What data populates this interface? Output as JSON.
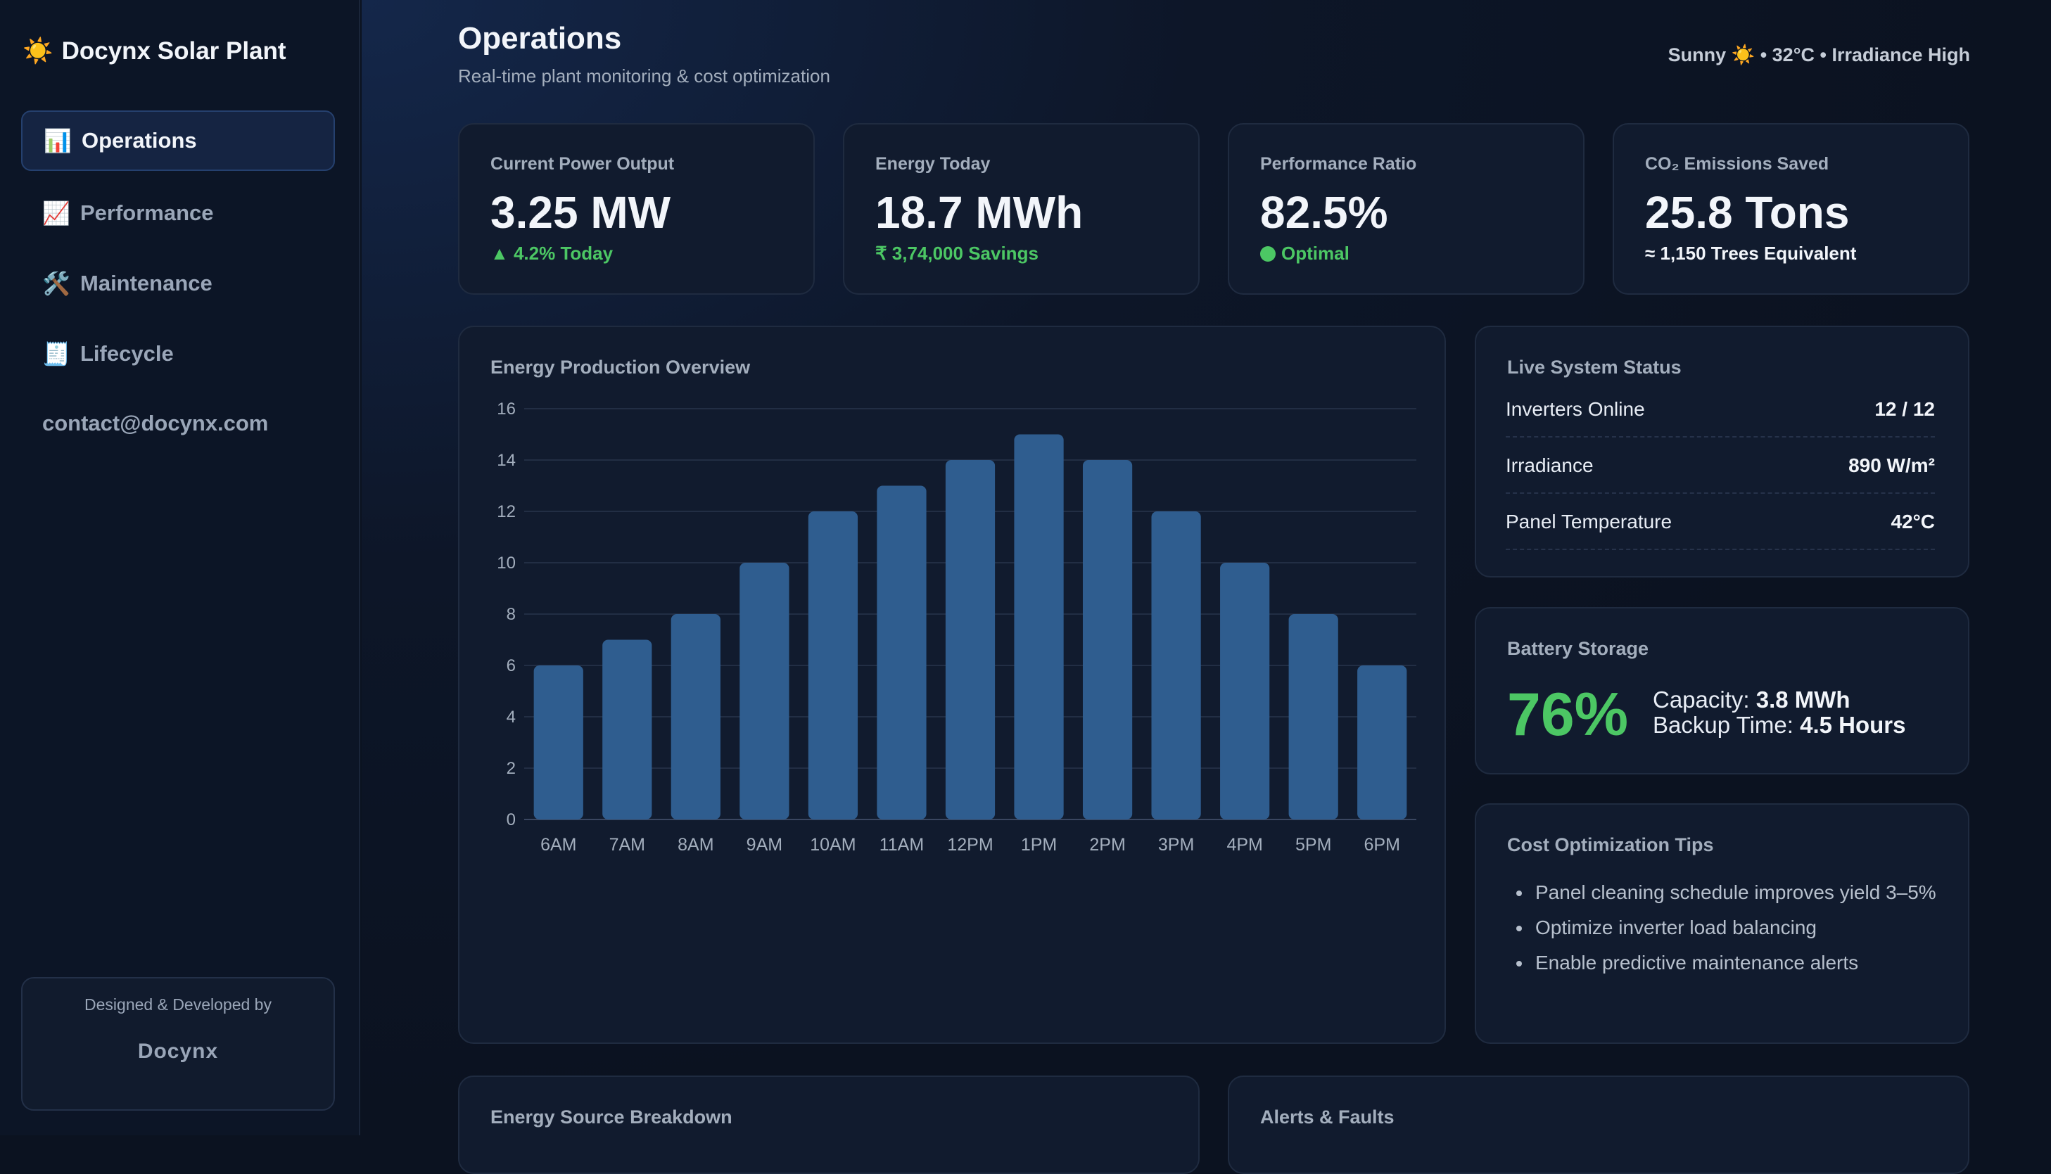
{
  "sidebar": {
    "brand_icon": "sun-icon",
    "brand_glyph": "☀️",
    "brand": "Docynx Solar Plant",
    "items": [
      {
        "label": "Operations",
        "icon": "bar-chart-icon",
        "glyph": "📊",
        "active": true
      },
      {
        "label": "Performance",
        "icon": "trend-chart-icon",
        "glyph": "📈",
        "active": false
      },
      {
        "label": "Maintenance",
        "icon": "tools-icon",
        "glyph": "🛠️",
        "active": false
      },
      {
        "label": "Lifecycle",
        "icon": "receipt-icon",
        "glyph": "🧾",
        "active": false
      }
    ],
    "contact": "contact@docynx.com",
    "credit_by": "Designed & Developed by",
    "credit_name": "Docynx"
  },
  "header": {
    "title": "Operations",
    "subtitle": "Real-time plant monitoring & cost optimization",
    "weather": "Sunny ☀️ • 32°C • Irradiance High"
  },
  "kpis": [
    {
      "label": "Current Power Output",
      "value": "3.25 MW",
      "sub": "▲ 4.2% Today",
      "sub_color": "#4cc764"
    },
    {
      "label": "Energy Today",
      "value": "18.7 MWh",
      "sub": "₹ 3,74,000 Savings",
      "sub_color": "#4cc764"
    },
    {
      "label": "Performance Ratio",
      "value": "82.5%",
      "sub": "Optimal",
      "sub_color": "#4cc764",
      "sub_dot": true
    },
    {
      "label": "CO₂ Emissions Saved",
      "value": "25.8 Tons",
      "sub": "≈ 1,150 Trees Equivalent",
      "sub_color": "#f2f5fa"
    }
  ],
  "energy_chart": {
    "title": "Energy Production Overview"
  },
  "chart_data": {
    "type": "bar",
    "categories": [
      "6AM",
      "7AM",
      "8AM",
      "9AM",
      "10AM",
      "11AM",
      "12PM",
      "1PM",
      "2PM",
      "3PM",
      "4PM",
      "5PM",
      "6PM"
    ],
    "values": [
      6,
      7,
      8,
      10,
      12,
      13,
      14,
      15,
      14,
      12,
      10,
      8,
      6
    ],
    "title": "Energy Production Overview",
    "xlabel": "",
    "ylabel": "",
    "ylim": [
      0,
      16
    ],
    "yticks": [
      0,
      2,
      4,
      6,
      8,
      10,
      12,
      14,
      16
    ],
    "grid": true,
    "bar_color": "#2f5d8f"
  },
  "live_status": {
    "title": "Live System Status",
    "rows": [
      {
        "label": "Inverters Online",
        "value": "12 / 12"
      },
      {
        "label": "Irradiance",
        "value": "890 W/m²"
      },
      {
        "label": "Panel Temperature",
        "value": "42°C"
      }
    ]
  },
  "battery": {
    "title": "Battery Storage",
    "percent": "76%",
    "capacity_label": "Capacity:",
    "capacity_value": "3.8 MWh",
    "backup_label": "Backup Time:",
    "backup_value": "4.5 Hours"
  },
  "tips": {
    "title": "Cost Optimization Tips",
    "items": [
      "Panel cleaning schedule improves yield 3–5%",
      "Optimize inverter load balancing",
      "Enable predictive maintenance alerts"
    ]
  },
  "bottom": {
    "breakdown_title": "Energy Source Breakdown",
    "alerts_title": "Alerts & Faults"
  }
}
